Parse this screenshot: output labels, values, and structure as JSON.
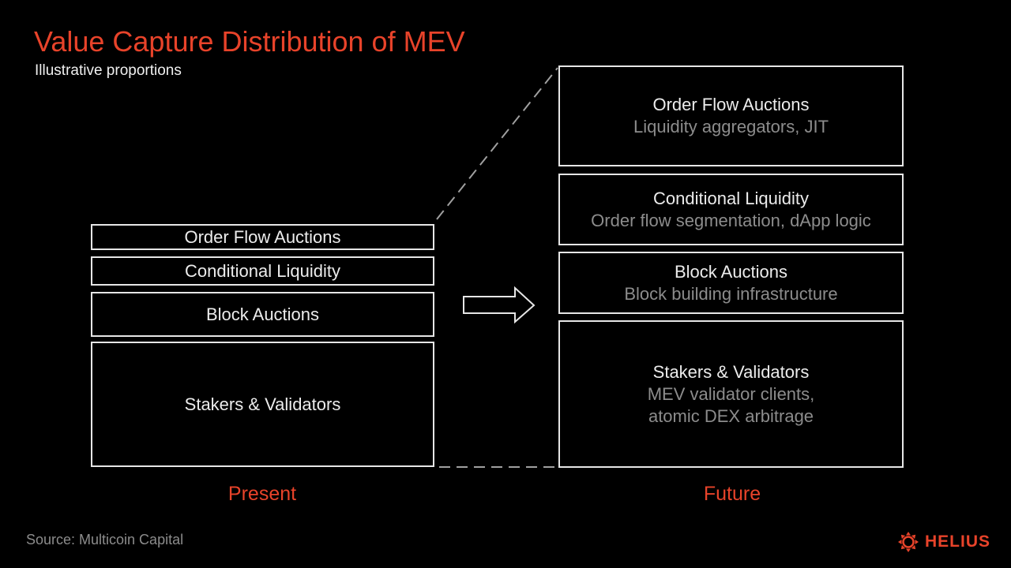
{
  "title": "Value Capture Distribution of MEV",
  "subtitle": "Illustrative proportions",
  "accent_color": "#e8432a",
  "present": {
    "label": "Present",
    "layers": [
      {
        "title": "Order Flow Auctions"
      },
      {
        "title": "Conditional Liquidity"
      },
      {
        "title": "Block Auctions"
      },
      {
        "title": "Stakers & Validators"
      }
    ]
  },
  "future": {
    "label": "Future",
    "layers": [
      {
        "title": "Order Flow Auctions",
        "subtitle": "Liquidity aggregators, JIT"
      },
      {
        "title": "Conditional Liquidity",
        "subtitle": "Order flow segmentation, dApp logic"
      },
      {
        "title": "Block Auctions",
        "subtitle": "Block building infrastructure"
      },
      {
        "title": "Stakers & Validators",
        "subtitle": "MEV validator clients,",
        "subtitle2": "atomic DEX arbitrage"
      }
    ]
  },
  "source": "Source: Multicoin Capital",
  "logo": {
    "text": "HELIUS",
    "icon": "sun-icon"
  }
}
